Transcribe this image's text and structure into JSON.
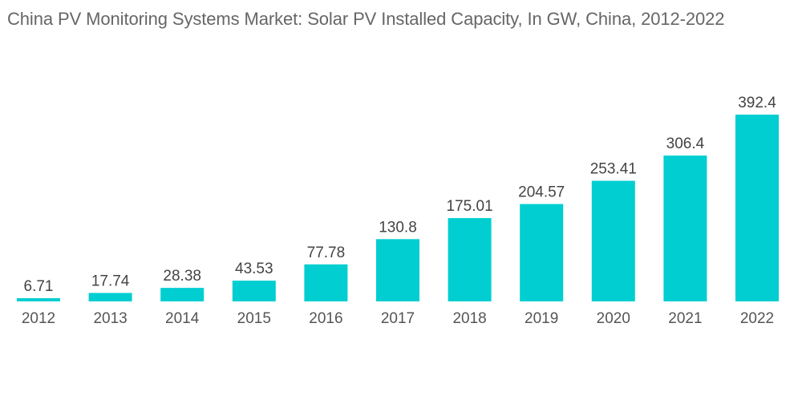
{
  "chart_data": {
    "type": "bar",
    "title": "China PV Monitoring Systems Market: Solar PV Installed Capacity, In GW, China, 2012-2022",
    "xlabel": "",
    "ylabel": "",
    "categories": [
      "2012",
      "2013",
      "2014",
      "2015",
      "2016",
      "2017",
      "2018",
      "2019",
      "2020",
      "2021",
      "2022"
    ],
    "values": [
      6.71,
      17.74,
      28.38,
      43.53,
      77.78,
      130.8,
      175.01,
      204.57,
      253.41,
      306.4,
      392.4
    ],
    "value_labels": [
      "6.71",
      "17.74",
      "28.38",
      "43.53",
      "77.78",
      "130.8",
      "175.01",
      "204.57",
      "253.41",
      "306.4",
      "392.4"
    ],
    "ylim": [
      0,
      392.4
    ],
    "grid": false,
    "legend": "none",
    "bar_color": "#00CED1"
  }
}
